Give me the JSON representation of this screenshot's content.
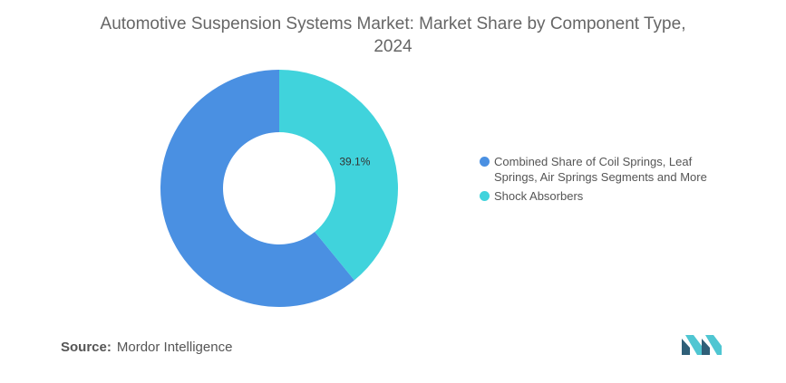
{
  "chart_data": {
    "type": "pie",
    "donut": true,
    "title": "Automotive Suspension Systems Market: Market Share by Component Type, 2024",
    "title_lines": [
      "Automotive Suspension Systems Market: Market Share by Component Type,",
      "2024"
    ],
    "categories": [
      "Combined Share of Coil Springs, Leaf Springs, Air Springs Segments and More",
      "Shock Absorbers"
    ],
    "values": [
      60.9,
      39.1
    ],
    "data_labels": [
      "",
      "39.1%"
    ],
    "colors": [
      "#4a90e2",
      "#40d3dc"
    ],
    "legend_position": "right"
  },
  "legend": {
    "items": [
      {
        "label_lines": [
          "Combined Share of Coil Springs, Leaf",
          "Springs, Air Springs Segments and More"
        ],
        "color": "#4a90e2"
      },
      {
        "label_lines": [
          "Shock Absorbers"
        ],
        "color": "#40d3dc"
      }
    ]
  },
  "source": {
    "label": "Source:",
    "text": "Mordor Intelligence"
  },
  "logo": {
    "icon": "mordor-intelligence-logo-icon",
    "color_left": "#2f5f78",
    "color_right": "#4fc6d2"
  }
}
